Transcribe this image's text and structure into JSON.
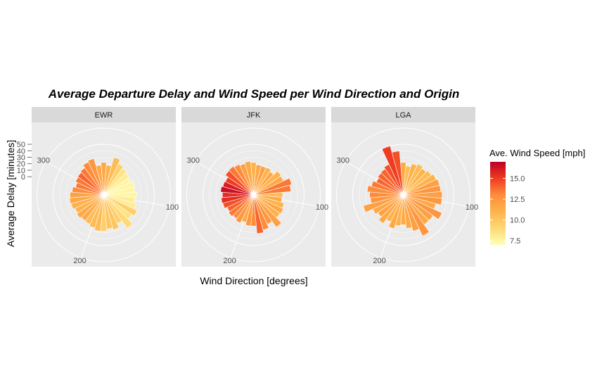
{
  "chart_data": {
    "type": "bar",
    "polar": true,
    "title": "Average Departure Delay and Wind Speed per Wind Direction and Origin",
    "xlabel": "Wind Direction [degrees]",
    "ylabel": "Average Delay [minutes]",
    "x_ticks": [
      100,
      200,
      300
    ],
    "y_ticks": [
      0,
      10,
      20,
      30,
      40,
      50
    ],
    "ylim": [
      -28,
      75
    ],
    "facets": [
      "EWR",
      "JFK",
      "LGA"
    ],
    "directions": [
      0,
      10,
      20,
      30,
      40,
      50,
      60,
      70,
      80,
      90,
      100,
      110,
      120,
      130,
      140,
      150,
      160,
      170,
      180,
      190,
      200,
      210,
      220,
      230,
      240,
      250,
      260,
      270,
      280,
      290,
      300,
      310,
      320,
      330,
      340,
      350
    ],
    "legend": {
      "title": "Ave. Wind Speed [mph]",
      "ticks": [
        7.5,
        10.0,
        12.5,
        15.0
      ],
      "range": [
        7,
        17
      ]
    },
    "series": [
      {
        "name": "EWR",
        "delay": [
          22,
          18,
          32,
          25,
          22,
          20,
          17,
          22,
          20,
          23,
          20,
          24,
          29,
          25,
          35,
          21,
          28,
          25,
          28,
          28,
          25,
          22,
          21,
          23,
          21,
          24,
          25,
          24,
          21,
          17,
          20,
          21,
          23,
          28,
          30,
          18
        ],
        "wind_speed": [
          11.5,
          11.0,
          10.5,
          9.5,
          8.5,
          8.0,
          7.5,
          7.5,
          7.5,
          7.5,
          8.0,
          8.0,
          9.5,
          8.5,
          9.0,
          9.5,
          10.0,
          10.0,
          9.5,
          10.5,
          10.5,
          10.5,
          11.5,
          11.5,
          11.0,
          11.0,
          11.5,
          12.0,
          13.0,
          13.5,
          13.5,
          14.0,
          13.5,
          13.0,
          12.5,
          11.5
        ]
      },
      {
        "name": "JFK",
        "delay": [
          22,
          19,
          18,
          19,
          16,
          24,
          23,
          33,
          30,
          17,
          16,
          21,
          23,
          22,
          33,
          22,
          28,
          32,
          20,
          20,
          16,
          20,
          17,
          19,
          17,
          21,
          22,
          20,
          23,
          21,
          20,
          25,
          26,
          24,
          22,
          24
        ],
        "wind_speed": [
          11.0,
          11.5,
          12.0,
          11.0,
          11.5,
          11.0,
          11.5,
          13.5,
          13.5,
          10.5,
          11.5,
          11.0,
          11.5,
          11.0,
          12.0,
          12.5,
          13.0,
          14.0,
          13.0,
          12.5,
          11.5,
          12.5,
          13.0,
          13.5,
          14.0,
          14.5,
          15.5,
          15.5,
          16.5,
          16.0,
          15.0,
          14.5,
          13.5,
          13.0,
          12.0,
          11.5
        ]
      },
      {
        "name": "LGA",
        "delay": [
          22,
          17,
          22,
          25,
          22,
          25,
          28,
          30,
          30,
          32,
          32,
          24,
          38,
          28,
          28,
          42,
          30,
          24,
          18,
          20,
          26,
          18,
          26,
          20,
          24,
          36,
          23,
          24,
          28,
          23,
          18,
          20,
          21,
          24,
          50,
          40
        ],
        "wind_speed": [
          11.5,
          10.5,
          11.0,
          10.5,
          11.0,
          10.5,
          11.0,
          12.0,
          12.5,
          12.0,
          12.5,
          11.5,
          12.5,
          12.0,
          11.5,
          12.5,
          12.0,
          11.5,
          11.5,
          11.0,
          11.5,
          11.0,
          11.5,
          12.0,
          11.5,
          12.0,
          12.5,
          13.0,
          13.0,
          13.5,
          14.0,
          14.0,
          14.0,
          14.5,
          15.0,
          14.5
        ]
      }
    ]
  }
}
